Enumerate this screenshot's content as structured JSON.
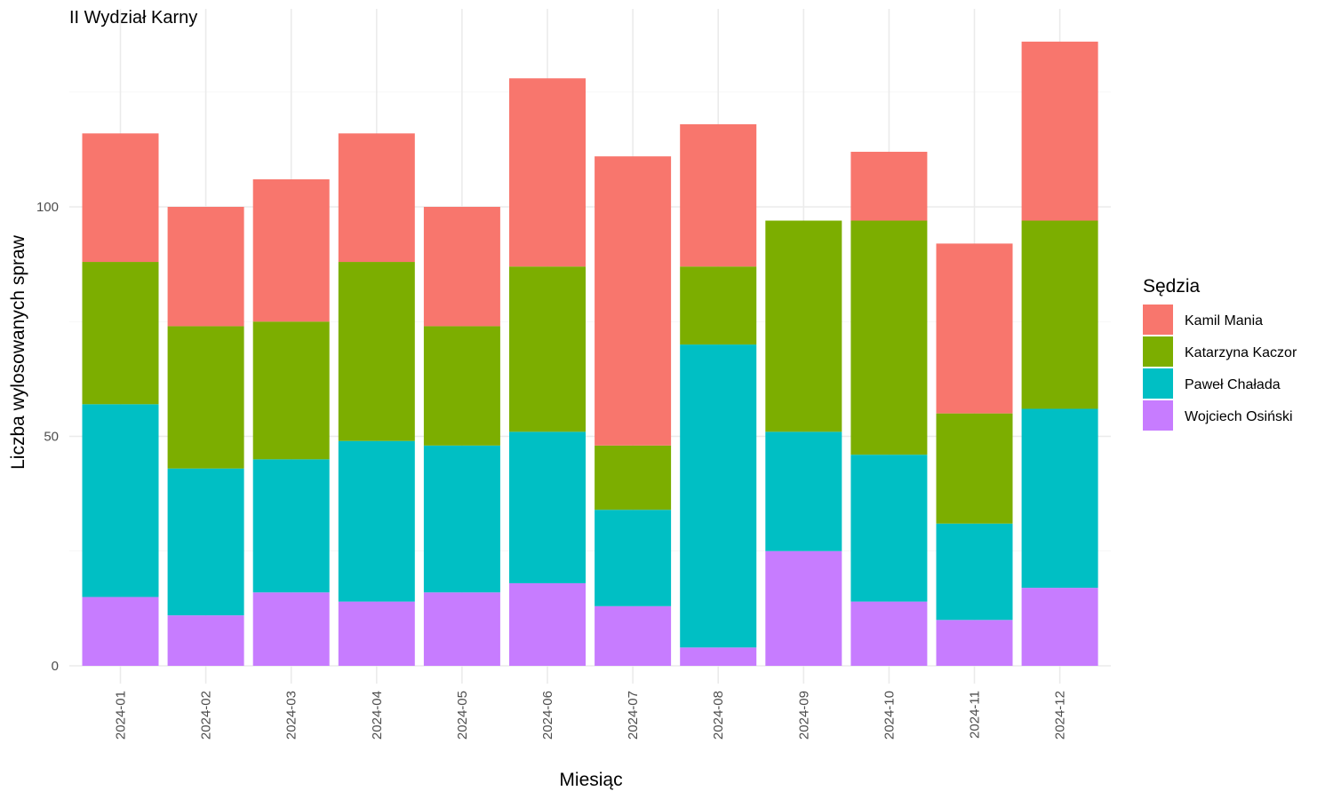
{
  "chart_data": {
    "type": "bar",
    "stacked": true,
    "title": "II Wydział Karny",
    "xlabel": "Miesiąc",
    "ylabel": "Liczba wylosowanych spraw",
    "ylim": [
      0,
      140
    ],
    "yticks": [
      0,
      50,
      100
    ],
    "grid": true,
    "legend": {
      "title": "Sędzia",
      "position": "right"
    },
    "categories": [
      "2024-01",
      "2024-02",
      "2024-03",
      "2024-04",
      "2024-05",
      "2024-06",
      "2024-07",
      "2024-08",
      "2024-09",
      "2024-10",
      "2024-11",
      "2024-12"
    ],
    "series": [
      {
        "name": "Wojciech Osiński",
        "color": "#C77CFF",
        "values": [
          15,
          11,
          16,
          14,
          16,
          18,
          13,
          4,
          25,
          14,
          10,
          17
        ]
      },
      {
        "name": "Paweł Chałada",
        "color": "#00BFC4",
        "values": [
          42,
          32,
          29,
          35,
          32,
          33,
          21,
          66,
          26,
          32,
          21,
          39
        ]
      },
      {
        "name": "Katarzyna Kaczor",
        "color": "#7CAE00",
        "values": [
          31,
          31,
          30,
          39,
          26,
          36,
          14,
          17,
          46,
          51,
          24,
          41
        ]
      },
      {
        "name": "Kamil Mania",
        "color": "#F8766D",
        "values": [
          28,
          26,
          31,
          28,
          26,
          41,
          63,
          31,
          0,
          15,
          37,
          39
        ]
      }
    ],
    "legend_order": [
      "Kamil Mania",
      "Katarzyna Kaczor",
      "Paweł Chałada",
      "Wojciech Osiński"
    ]
  }
}
